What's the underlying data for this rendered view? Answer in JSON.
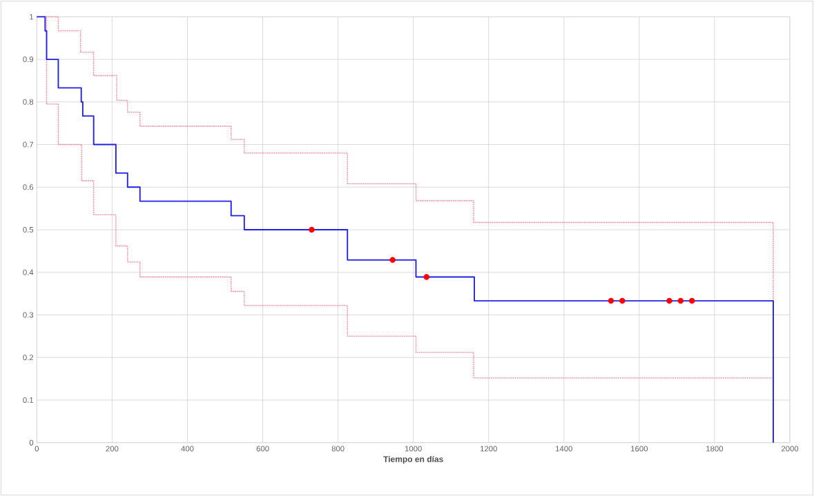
{
  "chart_data": {
    "type": "step",
    "xlabel": "Tiempo en días",
    "xlim": [
      0,
      2000
    ],
    "xticks": [
      0,
      200,
      400,
      600,
      800,
      1000,
      1200,
      1400,
      1600,
      1800,
      2000
    ],
    "ylim": [
      0,
      1
    ],
    "yticks": [
      0,
      0.1,
      0.2,
      0.3,
      0.4,
      0.5,
      0.6,
      0.7,
      0.8,
      0.9,
      1
    ],
    "grid": true,
    "series": [
      {
        "color": "#ff6680",
        "line_style": "dotted",
        "x": [
          0,
          57,
          116,
          151,
          212,
          241,
          274,
          516,
          551,
          825,
          1007,
          1160,
          1956
        ],
        "values": [
          1,
          0.967,
          0.917,
          0.862,
          0.804,
          0.776,
          0.743,
          0.712,
          0.68,
          0.608,
          0.568,
          0.517,
          0.333
        ]
      },
      {
        "color": "#ff6680",
        "line_style": "dotted",
        "x": [
          0,
          26,
          57,
          119,
          151,
          210,
          241,
          274,
          516,
          551,
          825,
          1007,
          1160,
          1956
        ],
        "values": [
          1,
          0.795,
          0.7,
          0.615,
          0.535,
          0.462,
          0.424,
          0.389,
          0.355,
          0.322,
          0.25,
          0.212,
          0.152,
          0.152
        ]
      },
      {
        "color": "#1f1fe6",
        "line_style": "solid",
        "x": [
          0,
          22,
          26,
          57,
          118,
          122,
          151,
          210,
          241,
          274,
          516,
          551,
          825,
          1007,
          1162,
          1956
        ],
        "values": [
          1,
          0.967,
          0.9,
          0.833,
          0.8,
          0.767,
          0.7,
          0.633,
          0.6,
          0.567,
          0.533,
          0.5,
          0.429,
          0.389,
          0.333,
          0
        ]
      },
      {
        "type": "scatter",
        "color": "#ff0000",
        "marker": "circle",
        "x": [
          730,
          945,
          1035,
          1525,
          1555,
          1680,
          1710,
          1740
        ],
        "values": [
          0.5,
          0.429,
          0.389,
          0.333,
          0.333,
          0.333,
          0.333,
          0.333
        ]
      }
    ]
  }
}
